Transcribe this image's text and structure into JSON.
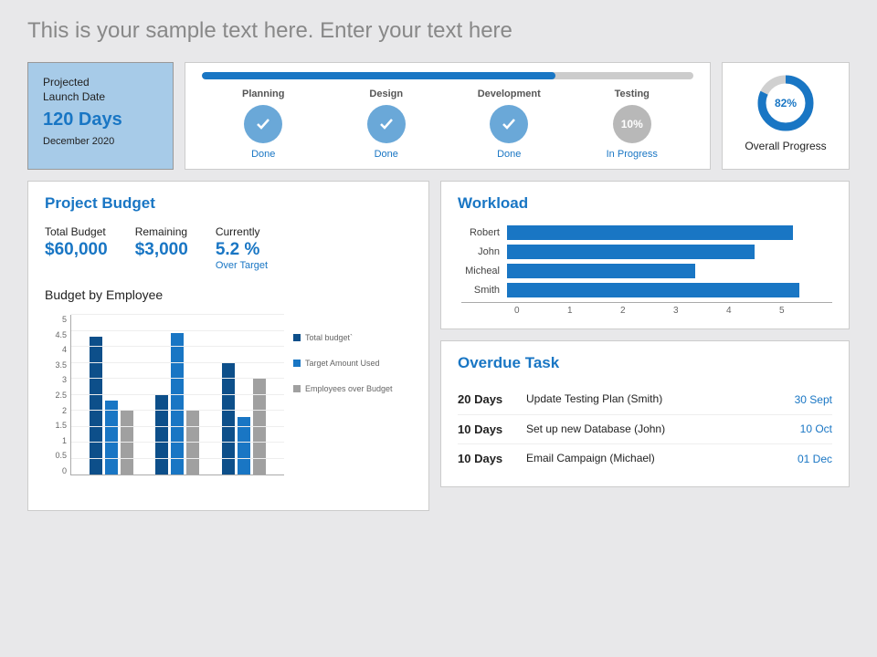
{
  "page_title": "This is your sample text here. Enter your text here",
  "launch": {
    "label1": "Projected",
    "label2": "Launch Date",
    "days": "120 Days",
    "date": "December 2020"
  },
  "phases_bar_pct": 72,
  "phases": [
    {
      "name": "Planning",
      "status": "Done",
      "done": true,
      "color": "#6aa8d8",
      "text": ""
    },
    {
      "name": "Design",
      "status": "Done",
      "done": true,
      "color": "#6aa8d8",
      "text": ""
    },
    {
      "name": "Development",
      "status": "Done",
      "done": true,
      "color": "#6aa8d8",
      "text": ""
    },
    {
      "name": "Testing",
      "status": "In Progress",
      "done": false,
      "color": "#b8b8b8",
      "text": "10%"
    }
  ],
  "overall": {
    "pct": 82,
    "label": "Overall Progress"
  },
  "budget": {
    "title": "Project Budget",
    "stats": [
      {
        "label": "Total Budget",
        "value": "$60,000",
        "sub": ""
      },
      {
        "label": "Remaining",
        "value": "$3,000",
        "sub": ""
      },
      {
        "label": "Currently",
        "value": "5.2 %",
        "sub": "Over Target"
      }
    ],
    "chart_title": "Budget by Employee",
    "ymax": 5,
    "ystep": 0.5,
    "series_colors": [
      "#0d4f8a",
      "#1976c4",
      "#a0a0a0"
    ],
    "legend": [
      "Total budget`",
      "Target Amount Used",
      "Employees over Budget"
    ],
    "groups": [
      [
        4.3,
        2.3,
        2.0
      ],
      [
        2.5,
        4.4,
        2.0
      ],
      [
        3.5,
        1.8,
        3.0
      ]
    ]
  },
  "workload": {
    "title": "Workload",
    "xmax": 5,
    "bar_color": "#1976c4",
    "items": [
      {
        "name": "Robert",
        "value": 4.4
      },
      {
        "name": "John",
        "value": 3.8
      },
      {
        "name": "Micheal",
        "value": 2.9
      },
      {
        "name": "Smith",
        "value": 4.5
      }
    ],
    "xticks": [
      "0",
      "1",
      "2",
      "3",
      "4",
      "5"
    ]
  },
  "overdue": {
    "title": "Overdue Task",
    "tasks": [
      {
        "days": "20 Days",
        "desc": "Update Testing Plan (Smith)",
        "date": "30 Sept"
      },
      {
        "days": "10 Days",
        "desc": "Set up new Database (John)",
        "date": "10 Oct"
      },
      {
        "days": "10 Days",
        "desc": "Email Campaign (Michael)",
        "date": "01 Dec"
      }
    ]
  },
  "colors": {
    "primary": "#1976c4",
    "card_bg": "#ffffff",
    "page_bg": "#e8e8ea"
  }
}
